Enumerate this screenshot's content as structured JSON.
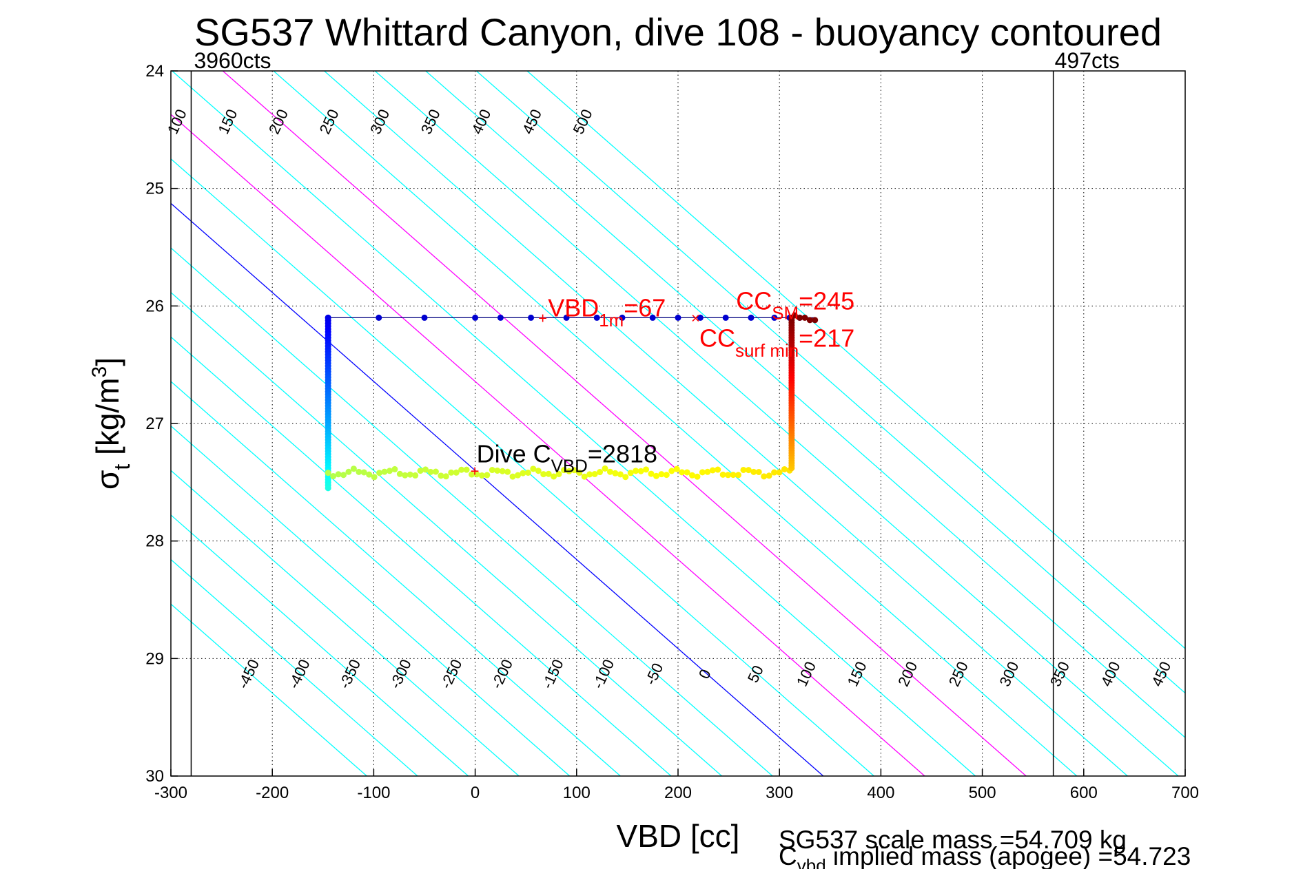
{
  "chart_data": {
    "type": "scatter",
    "title": "SG537 Whittard Canyon, dive 108 - buoyancy contoured",
    "xlabel": "VBD [cc]",
    "ylabel_main": "σ",
    "ylabel_sub": "t",
    "ylabel_unit_base": " [kg/m",
    "ylabel_unit_exp": "3",
    "ylabel_unit_close": "]",
    "xlim": [
      -300,
      700
    ],
    "ylim": [
      24,
      30
    ],
    "y_reversed": true,
    "grid": true,
    "grid_style": "dotted",
    "x_ticks": [
      "-300",
      "-200",
      "-100",
      "0",
      "100",
      "200",
      "300",
      "400",
      "500",
      "600",
      "700"
    ],
    "y_ticks": [
      "24",
      "25",
      "26",
      "27",
      "28",
      "29",
      "30"
    ],
    "limit_lines": [
      {
        "x": -280,
        "label": "3960cts"
      },
      {
        "x": 570,
        "label": "497cts"
      }
    ],
    "buoyancy_contours": {
      "levels": [
        -450,
        -400,
        -350,
        -300,
        -250,
        -200,
        -150,
        -100,
        -50,
        0,
        50,
        100,
        150,
        200,
        250,
        300,
        350,
        400,
        450,
        500
      ],
      "highlight_levels": {
        "0": "#0000ff",
        "100": "#ff00ff",
        "200": "#ff00ff"
      },
      "default_color": "#00ffff"
    },
    "annotations": {
      "vbd1m": {
        "main": "VBD",
        "sub": "1m",
        "val": "=67",
        "color": "#ff0000",
        "x": 67,
        "y": 26.1
      },
      "cc_sm": {
        "main": "CC",
        "sub": "SM",
        "val": "=245",
        "color": "#ff0000"
      },
      "cc_surf": {
        "main": "CC",
        "sub": "surf min",
        "val": "=217",
        "color": "#ff0000",
        "x": 217,
        "y": 26.1
      },
      "cvbd": {
        "main": "Dive C",
        "sub": "VBD",
        "val": "=2818",
        "color": "#000000",
        "x": 0,
        "y": 27.4
      }
    },
    "series": {
      "surface_track": {
        "y": 26.1,
        "x": [
          -145,
          -95,
          -50,
          0,
          25,
          55,
          90,
          120,
          145,
          175,
          200,
          222,
          247,
          272,
          295,
          310,
          320
        ]
      },
      "descent_column": {
        "x": -145,
        "y_start": 26.1,
        "y_end": 27.55
      },
      "dive_path": {
        "y": 27.42,
        "x_start": -145,
        "x_end": 310
      },
      "ascent_column": {
        "x": 312,
        "y_start": 26.1,
        "y_end": 27.38
      },
      "surface_end": {
        "x": [
          315,
          320,
          325,
          330,
          335
        ],
        "y": [
          26.08,
          26.1,
          26.1,
          26.12,
          26.12
        ]
      }
    },
    "footer": {
      "line1": "SG537 scale mass =54.709 kg",
      "line2_main": "C",
      "line2_sub": "vbd",
      "line2_rest": " implied mass (apogee) =54.723"
    }
  }
}
